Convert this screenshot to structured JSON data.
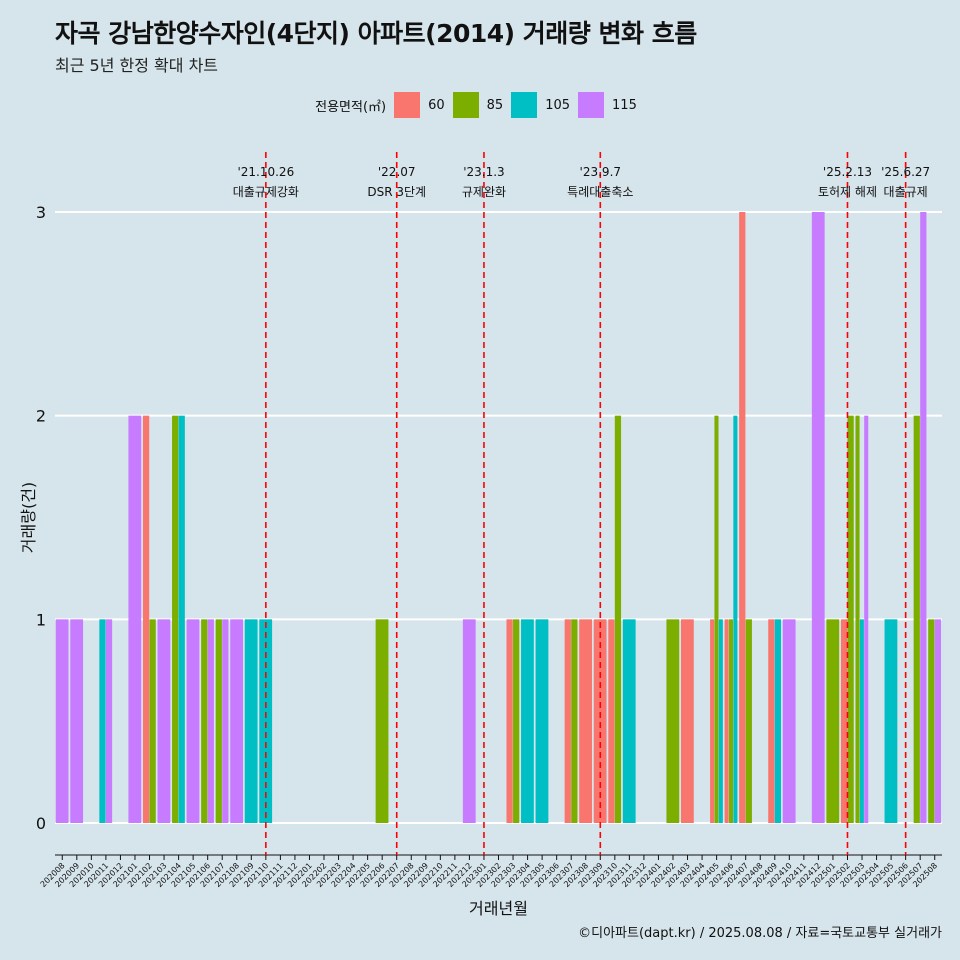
{
  "title": "자곡 강남한양수자인(4단지) 아파트(2014) 거래량 변화 흐름",
  "subtitle": "최근 5년 한정 확대 차트",
  "caption": "©디아파트(dapt.kr) / 2025.08.08 / 자료=국토교통부 실거래가",
  "colors": {
    "60": "#f8766d",
    "85": "#7cae00",
    "105": "#00bfc4",
    "115": "#c77cff",
    "background": "#d6e4eb",
    "event_line": "#ff0000"
  },
  "chart_data": {
    "type": "bar",
    "xlabel": "거래년월",
    "ylabel": "거래량(건)",
    "ylim": [
      0,
      3
    ],
    "yticks": [
      0,
      1,
      2,
      3
    ],
    "grid": true,
    "legend_position": "top",
    "legend_title": "전용면적(㎡)",
    "categories": [
      "202008",
      "202009",
      "202010",
      "202011",
      "202012",
      "202101",
      "202102",
      "202103",
      "202104",
      "202105",
      "202106",
      "202107",
      "202108",
      "202109",
      "202110",
      "202111",
      "202112",
      "202201",
      "202202",
      "202203",
      "202204",
      "202205",
      "202206",
      "202207",
      "202208",
      "202209",
      "202210",
      "202211",
      "202212",
      "202301",
      "202302",
      "202303",
      "202304",
      "202305",
      "202306",
      "202307",
      "202308",
      "202309",
      "202310",
      "202311",
      "202312",
      "202401",
      "202402",
      "202403",
      "202404",
      "202405",
      "202406",
      "202407",
      "202408",
      "202409",
      "202410",
      "202411",
      "202412",
      "202501",
      "202502",
      "202503",
      "202504",
      "202505",
      "202506",
      "202507",
      "202508"
    ],
    "series": [
      {
        "name": "60",
        "values": [
          0,
          0,
          0,
          0,
          0,
          0,
          2,
          0,
          0,
          0,
          0,
          0,
          0,
          0,
          0,
          0,
          0,
          0,
          0,
          0,
          0,
          0,
          0,
          0,
          0,
          0,
          0,
          0,
          0,
          0,
          0,
          1,
          0,
          0,
          0,
          1,
          1,
          1,
          1,
          0,
          0,
          0,
          0,
          1,
          0,
          1,
          1,
          3,
          0,
          1,
          0,
          0,
          0,
          0,
          1,
          0,
          0,
          0,
          0,
          0,
          0
        ]
      },
      {
        "name": "85",
        "values": [
          0,
          0,
          0,
          0,
          0,
          0,
          1,
          0,
          2,
          0,
          1,
          1,
          0,
          0,
          0,
          0,
          0,
          0,
          0,
          0,
          0,
          0,
          1,
          0,
          0,
          0,
          0,
          0,
          0,
          0,
          0,
          1,
          0,
          0,
          0,
          1,
          0,
          0,
          2,
          0,
          0,
          0,
          1,
          0,
          0,
          2,
          1,
          1,
          0,
          0,
          0,
          0,
          0,
          1,
          2,
          2,
          0,
          0,
          0,
          2,
          1
        ]
      },
      {
        "name": "105",
        "values": [
          0,
          0,
          0,
          1,
          0,
          0,
          0,
          0,
          2,
          0,
          0,
          0,
          0,
          1,
          1,
          0,
          0,
          0,
          0,
          0,
          0,
          0,
          0,
          0,
          0,
          0,
          0,
          0,
          0,
          0,
          0,
          0,
          1,
          1,
          0,
          0,
          0,
          0,
          0,
          1,
          0,
          0,
          0,
          0,
          0,
          1,
          2,
          0,
          0,
          1,
          0,
          0,
          0,
          0,
          0,
          1,
          0,
          1,
          0,
          0,
          0
        ]
      },
      {
        "name": "115",
        "values": [
          1,
          1,
          0,
          1,
          0,
          2,
          0,
          1,
          0,
          1,
          1,
          1,
          1,
          0,
          0,
          0,
          0,
          0,
          0,
          0,
          0,
          0,
          0,
          0,
          0,
          0,
          0,
          0,
          1,
          0,
          0,
          0,
          0,
          0,
          0,
          0,
          0,
          0,
          0,
          0,
          0,
          0,
          0,
          0,
          0,
          0,
          0,
          0,
          0,
          0,
          1,
          0,
          3,
          0,
          0,
          2,
          0,
          0,
          0,
          3,
          1
        ]
      }
    ],
    "events": [
      {
        "month": "202110",
        "date": "'21.10.26",
        "label": "대출규제강화"
      },
      {
        "month": "202207",
        "date": "'22.07",
        "label": "DSR 3단계"
      },
      {
        "month": "202301",
        "date": "'23.1.3",
        "label": "규제완화"
      },
      {
        "month": "202309",
        "date": "'23.9.7",
        "label": "특례대출축소"
      },
      {
        "month": "202502",
        "date": "'25.2.13",
        "label": "토허제 해제"
      },
      {
        "month": "202506",
        "date": "'25.6.27",
        "label": "대출규제"
      }
    ]
  }
}
